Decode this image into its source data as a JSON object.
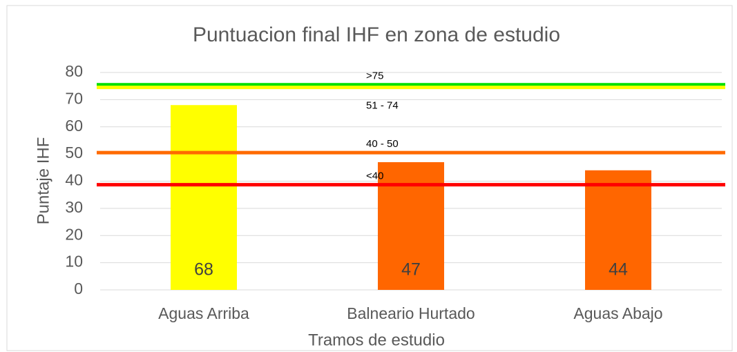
{
  "chart_data": {
    "type": "bar",
    "title": "Puntuacion final IHF en zona de estudio",
    "x_label": "Tramos de estudio",
    "y_label": "Puntaje IHF",
    "categories": [
      "Aguas Arriba",
      "Balneario Hurtado",
      "Aguas Abajo"
    ],
    "values": [
      68,
      47,
      44
    ],
    "colors": [
      "#ffff00",
      "#ff6600",
      "#ff6600"
    ],
    "ylim": [
      0,
      80
    ],
    "yticks": [
      0,
      10,
      20,
      30,
      40,
      50,
      60,
      70,
      80
    ],
    "grid": true,
    "reference_lines": [
      {
        "label": ">75",
        "value": 75.5,
        "color": "#00e000"
      },
      {
        "label": "51 - 74",
        "value": 74.5,
        "color": "#ffff00"
      },
      {
        "label": "40 - 50",
        "value": 50.5,
        "color": "#ff6a00"
      },
      {
        "label": "<40",
        "value": 38.7,
        "color": "#ff0000"
      }
    ]
  }
}
